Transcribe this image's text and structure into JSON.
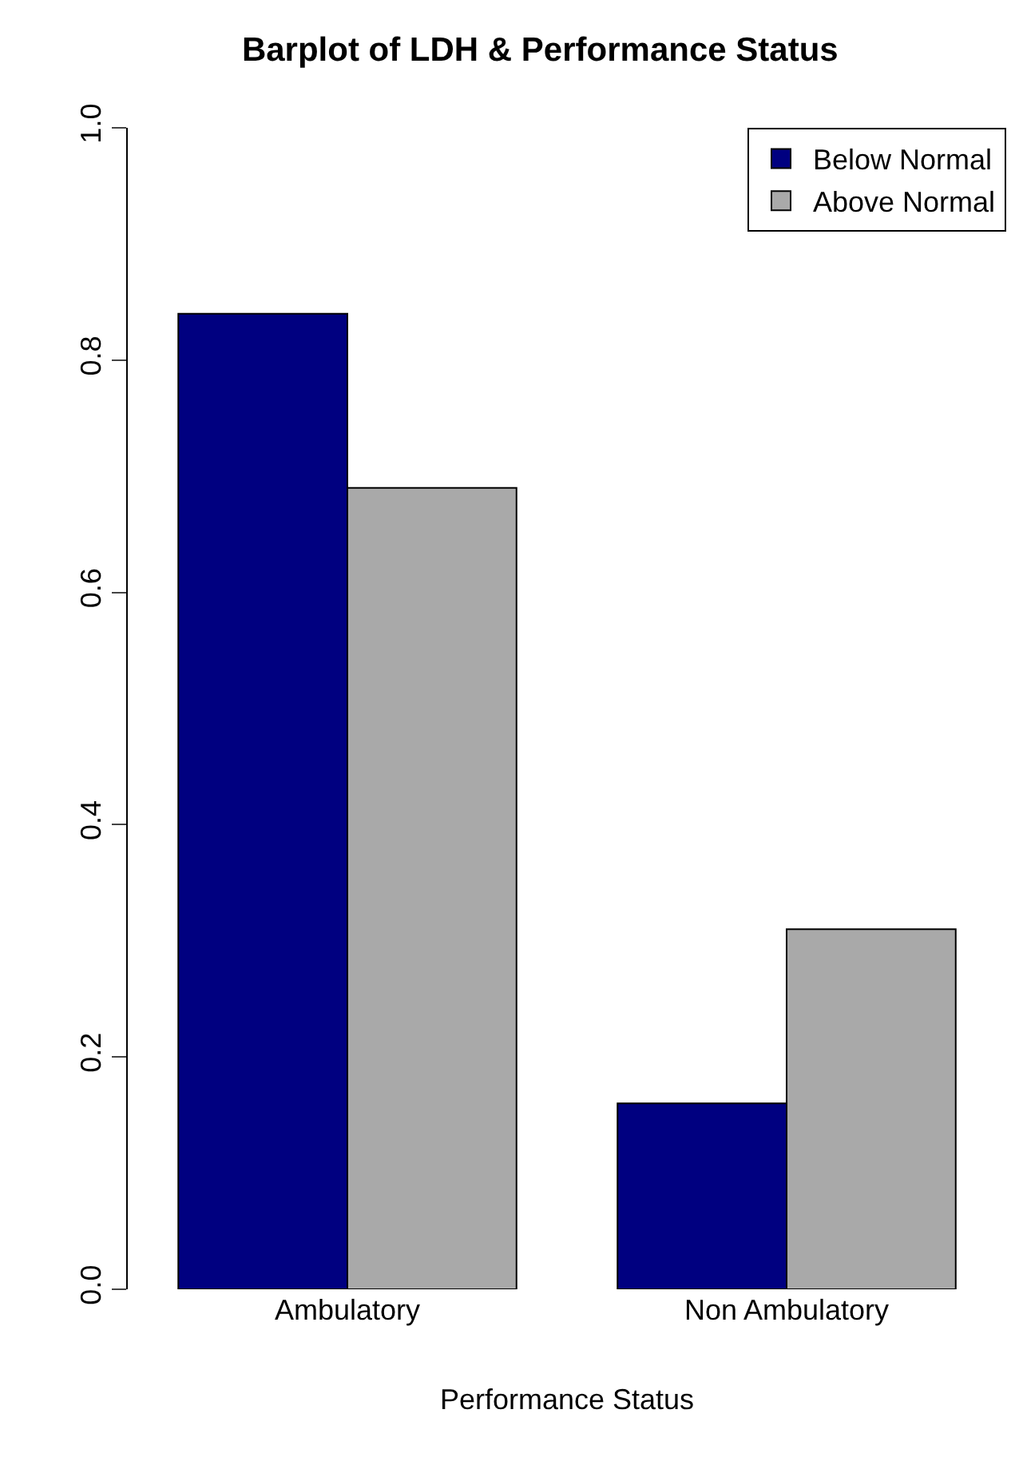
{
  "chart_data": {
    "type": "bar",
    "title": "Barplot of LDH & Performance Status",
    "xlabel": "Performance Status",
    "categories": [
      "Ambulatory",
      "Non Ambulatory"
    ],
    "series": [
      {
        "name": "Below Normal",
        "color": "#000080",
        "values": [
          0.84,
          0.16
        ]
      },
      {
        "name": "Above Normal",
        "color": "#a9a9a9",
        "values": [
          0.69,
          0.31
        ]
      }
    ],
    "ylim": [
      0,
      1
    ],
    "yticks": [
      {
        "value": 0,
        "label": "0.0"
      },
      {
        "value": 0.2,
        "label": "0.2"
      },
      {
        "value": 0.4,
        "label": "0.4"
      },
      {
        "value": 0.6,
        "label": "0.6"
      },
      {
        "value": 0.8,
        "label": "0.8"
      },
      {
        "value": 1,
        "label": "1.0"
      }
    ],
    "grid": false,
    "legend": "top right"
  }
}
